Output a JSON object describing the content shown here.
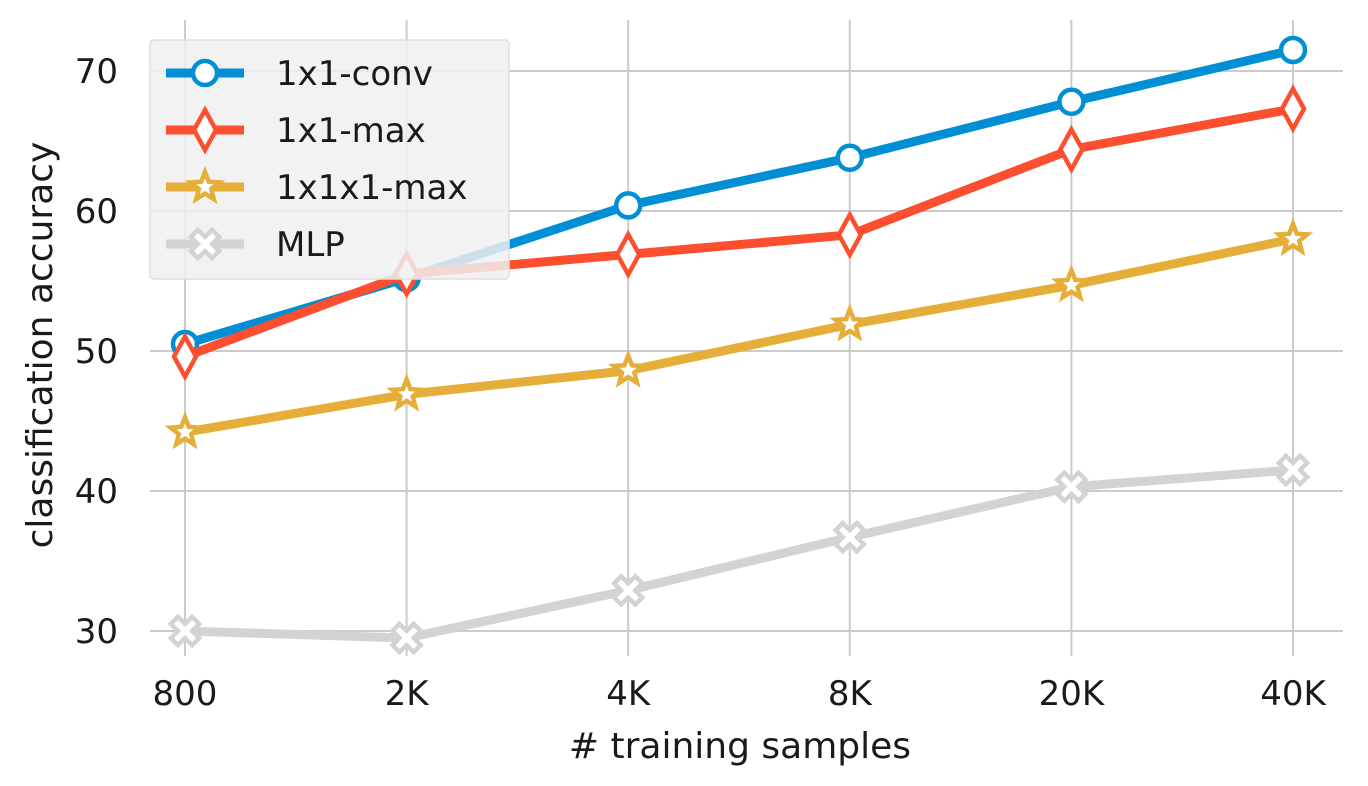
{
  "chart_data": {
    "type": "line",
    "title": "",
    "xlabel": "# training samples",
    "ylabel": "classification accuracy",
    "categories": [
      "800",
      "2K",
      "4K",
      "8K",
      "20K",
      "40K"
    ],
    "ylim": [
      27.5,
      73.5
    ],
    "yticks": [
      30,
      40,
      50,
      60,
      70
    ],
    "grid": true,
    "legend_position": "top-left",
    "series": [
      {
        "name": "1x1-conv",
        "color": "#008fd5",
        "marker": "circle",
        "values": [
          50.5,
          55.2,
          60.4,
          63.8,
          67.8,
          71.5
        ]
      },
      {
        "name": "1x1-max",
        "color": "#fc4f30",
        "marker": "diamond",
        "values": [
          49.6,
          55.5,
          56.9,
          58.3,
          64.4,
          67.3
        ]
      },
      {
        "name": "1x1x1-max",
        "color": "#e5ae38",
        "marker": "star",
        "values": [
          44.2,
          46.9,
          48.6,
          51.9,
          54.7,
          58.0
        ]
      },
      {
        "name": "MLP",
        "color": "#d3d3d3",
        "marker": "x",
        "values": [
          30.0,
          29.5,
          32.9,
          36.7,
          40.3,
          41.5
        ]
      }
    ]
  }
}
